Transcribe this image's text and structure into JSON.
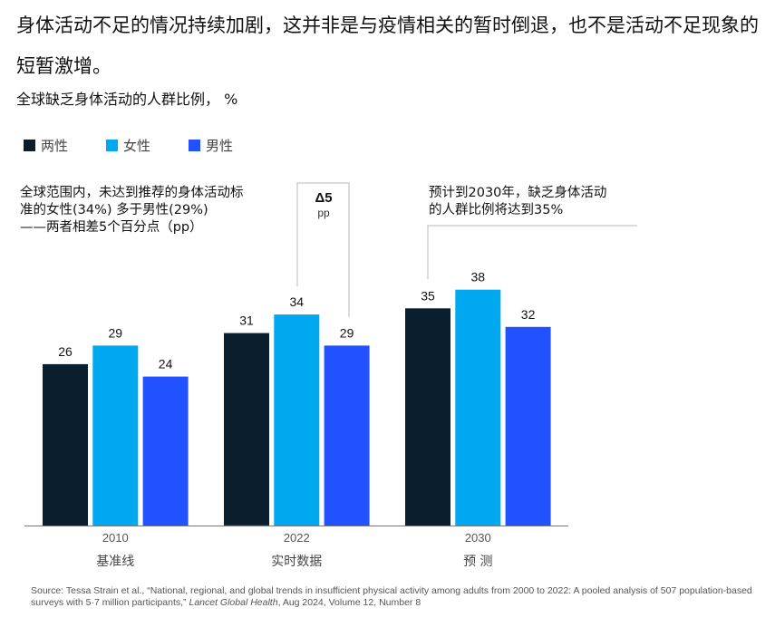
{
  "header": {
    "title": "身体活动不足的情况持续加剧，这并非是与疫情相关的暂时倒退，也不是活动不足现象的短暂激增。",
    "subtitle": "全球缺乏身体活动的人群比例， %"
  },
  "annotations": {
    "left_note": [
      "全球范围内，未达到推荐的身体活动标",
      "准的女性(34%) 多于男性(29%)",
      "——两者相差5个百分点（pp）"
    ],
    "delta_value": "Δ5",
    "delta_unit": "pp",
    "right_note": [
      "预计到2030年，缺乏身体活动",
      "的人群比例将达到35%"
    ]
  },
  "colors": {
    "both": "#0a1e2e",
    "female": "#00a8f0",
    "male": "#2251ff",
    "axis": "#777777",
    "bracket": "#c8c8c8"
  },
  "chart_data": {
    "type": "bar",
    "title": "全球缺乏身体活动的人群比例， %",
    "xlabel": "",
    "ylabel": "%",
    "ylim": [
      0,
      38
    ],
    "grid": false,
    "legend_position": "top-left",
    "categories": [
      "2010",
      "2022",
      "2030"
    ],
    "category_sublabels": [
      "基准线",
      "实时数据",
      "预 测"
    ],
    "series": [
      {
        "name": "两性",
        "color_key": "both",
        "values": [
          26,
          31,
          35
        ]
      },
      {
        "name": "女性",
        "color_key": "female",
        "values": [
          29,
          34,
          38
        ]
      },
      {
        "name": "男性",
        "color_key": "male",
        "values": [
          24,
          29,
          32
        ]
      }
    ]
  },
  "source": {
    "prefix": "Source: Tessa Strain et al., “National, regional, and global trends in insufficient physical activity among adults from 2000 to 2022: A pooled analysis of 507 population-based surveys with 5·7 million participants,” ",
    "journal": "Lancet Global Health",
    "suffix": ", Aug 2024, Volume 12, Number 8"
  }
}
